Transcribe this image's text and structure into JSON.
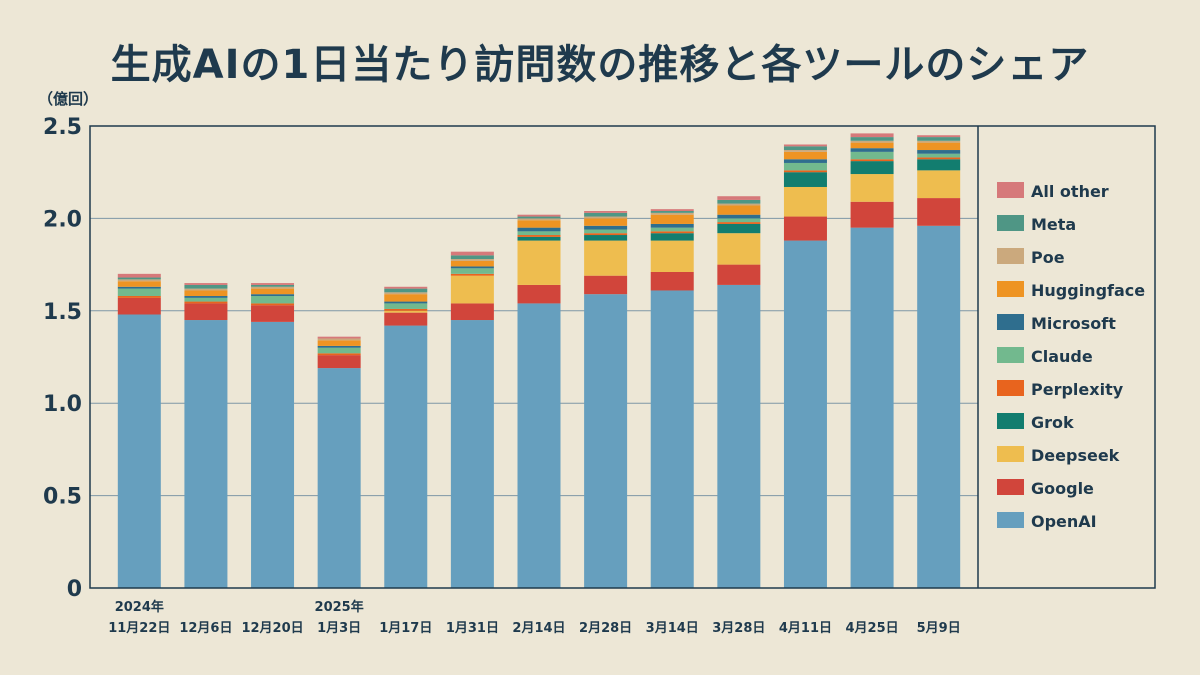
{
  "chart_data": {
    "type": "bar",
    "stacked": true,
    "title": "生成AIの1日当たり訪問数の推移と各ツールのシェア",
    "unit_label": "（億回）",
    "ylim": [
      0,
      2.5
    ],
    "yticks": [
      "0",
      "0.5",
      "1.0",
      "1.5",
      "2.0",
      "2.5"
    ],
    "ytick_values": [
      0,
      0.5,
      1.0,
      1.5,
      2.0,
      2.5
    ],
    "categories": [
      {
        "year": "2024年",
        "label": "11月22日"
      },
      {
        "year": "",
        "label": "12月6日"
      },
      {
        "year": "",
        "label": "12月20日"
      },
      {
        "year": "2025年",
        "label": "1月3日"
      },
      {
        "year": "",
        "label": "1月17日"
      },
      {
        "year": "",
        "label": "1月31日"
      },
      {
        "year": "",
        "label": "2月14日"
      },
      {
        "year": "",
        "label": "2月28日"
      },
      {
        "year": "",
        "label": "3月14日"
      },
      {
        "year": "",
        "label": "3月28日"
      },
      {
        "year": "",
        "label": "4月11日"
      },
      {
        "year": "",
        "label": "4月25日"
      },
      {
        "year": "",
        "label": "5月9日"
      }
    ],
    "series": [
      {
        "name": "OpenAI",
        "color": "#669fbe",
        "values": [
          1.48,
          1.45,
          1.44,
          1.19,
          1.42,
          1.45,
          1.54,
          1.59,
          1.61,
          1.64,
          1.88,
          1.95,
          1.96
        ]
      },
      {
        "name": "Google",
        "color": "#d1453b",
        "values": [
          0.09,
          0.09,
          0.09,
          0.07,
          0.07,
          0.09,
          0.1,
          0.1,
          0.1,
          0.11,
          0.13,
          0.14,
          0.15
        ]
      },
      {
        "name": "Deepseek",
        "color": "#eebd4f",
        "values": [
          0.0,
          0.0,
          0.0,
          0.0,
          0.01,
          0.15,
          0.24,
          0.19,
          0.17,
          0.17,
          0.16,
          0.15,
          0.15
        ]
      },
      {
        "name": "Grok",
        "color": "#127d6f",
        "values": [
          0.0,
          0.0,
          0.0,
          0.0,
          0.0,
          0.0,
          0.02,
          0.03,
          0.04,
          0.05,
          0.08,
          0.07,
          0.06
        ]
      },
      {
        "name": "Perplexity",
        "color": "#e8641e",
        "values": [
          0.01,
          0.01,
          0.01,
          0.01,
          0.01,
          0.01,
          0.01,
          0.01,
          0.01,
          0.01,
          0.01,
          0.01,
          0.01
        ]
      },
      {
        "name": "Claude",
        "color": "#72b98e",
        "values": [
          0.04,
          0.02,
          0.04,
          0.03,
          0.03,
          0.03,
          0.02,
          0.02,
          0.02,
          0.02,
          0.04,
          0.04,
          0.02
        ]
      },
      {
        "name": "Microsoft",
        "color": "#2f6e8e",
        "values": [
          0.01,
          0.01,
          0.01,
          0.01,
          0.01,
          0.01,
          0.02,
          0.02,
          0.02,
          0.02,
          0.02,
          0.02,
          0.02
        ]
      },
      {
        "name": "Huggingface",
        "color": "#ee9423",
        "values": [
          0.03,
          0.03,
          0.03,
          0.03,
          0.04,
          0.03,
          0.04,
          0.04,
          0.05,
          0.05,
          0.04,
          0.03,
          0.04
        ]
      },
      {
        "name": "Poe",
        "color": "#cba97d",
        "values": [
          0.01,
          0.01,
          0.01,
          0.01,
          0.01,
          0.01,
          0.01,
          0.01,
          0.01,
          0.01,
          0.01,
          0.01,
          0.01
        ]
      },
      {
        "name": "Meta",
        "color": "#4f9685",
        "values": [
          0.01,
          0.02,
          0.01,
          0.0,
          0.02,
          0.02,
          0.01,
          0.02,
          0.01,
          0.02,
          0.02,
          0.02,
          0.02
        ]
      },
      {
        "name": "All other",
        "color": "#d6797a",
        "values": [
          0.02,
          0.01,
          0.01,
          0.01,
          0.01,
          0.02,
          0.01,
          0.01,
          0.01,
          0.02,
          0.01,
          0.02,
          0.01
        ]
      }
    ],
    "legend_position": "right",
    "grid": true
  }
}
